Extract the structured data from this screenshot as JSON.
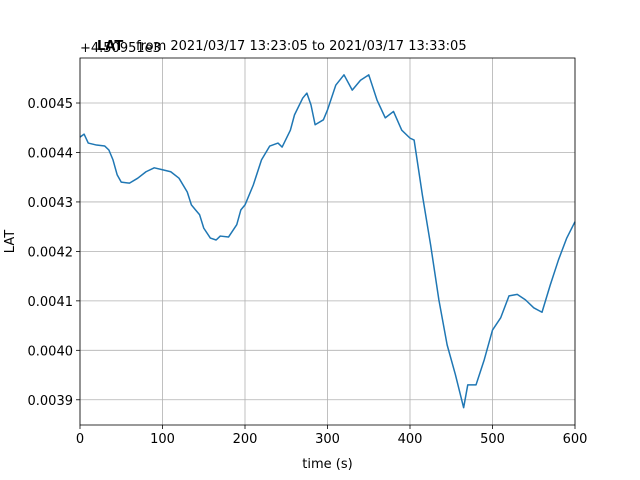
{
  "chart_data": {
    "type": "line",
    "title_prefix": "LAT",
    "title": "from 2021/03/17 13:23:05 to 2021/03/17 13:33:05",
    "xlabel": "time (s)",
    "ylabel": "LAT",
    "y_offset": "+4.50951e3",
    "grid": true,
    "xlim": [
      0,
      600
    ],
    "xticks": [
      0,
      100,
      200,
      300,
      400,
      500,
      600
    ],
    "ylim": [
      0.003849,
      0.004591
    ],
    "yticks": [
      0.0039,
      {
        "value": 0.004,
        "label": "0.0040"
      },
      0.0041,
      0.0042,
      0.0043,
      0.0044,
      0.0045
    ],
    "x": [
      0,
      5,
      10,
      20,
      30,
      35,
      40,
      45,
      50,
      60,
      70,
      80,
      90,
      100,
      110,
      120,
      130,
      135,
      140,
      145,
      150,
      158,
      165,
      170,
      180,
      190,
      195,
      200,
      210,
      220,
      230,
      240,
      245,
      255,
      260,
      270,
      275,
      280,
      285,
      295,
      300,
      310,
      320,
      330,
      340,
      350,
      360,
      370,
      380,
      390,
      400,
      405,
      415,
      425,
      435,
      445,
      455,
      465,
      470,
      480,
      490,
      500,
      510,
      520,
      530,
      540,
      550,
      560,
      570,
      580,
      590,
      600
    ],
    "series": [
      {
        "name": "LAT",
        "color": "#1f77b4",
        "values": [
          0.004431,
          0.004437,
          0.004419,
          0.004415,
          0.004413,
          0.004405,
          0.004385,
          0.004355,
          0.00434,
          0.004338,
          0.004348,
          0.004361,
          0.004369,
          0.004365,
          0.004361,
          0.004348,
          0.00432,
          0.004294,
          0.004284,
          0.004274,
          0.004247,
          0.004227,
          0.004223,
          0.004231,
          0.004229,
          0.004254,
          0.004284,
          0.004294,
          0.004334,
          0.004385,
          0.004413,
          0.004419,
          0.004411,
          0.004445,
          0.004476,
          0.00451,
          0.00452,
          0.004496,
          0.004456,
          0.004466,
          0.004486,
          0.004536,
          0.004557,
          0.004526,
          0.004546,
          0.004557,
          0.004506,
          0.00447,
          0.004483,
          0.004445,
          0.004429,
          0.004425,
          0.004314,
          0.004213,
          0.004102,
          0.004011,
          0.003951,
          0.003884,
          0.00393,
          0.00393,
          0.003981,
          0.004041,
          0.004066,
          0.00411,
          0.004113,
          0.004102,
          0.004086,
          0.004077,
          0.004132,
          0.004183,
          0.004227,
          0.00426
        ]
      }
    ]
  }
}
